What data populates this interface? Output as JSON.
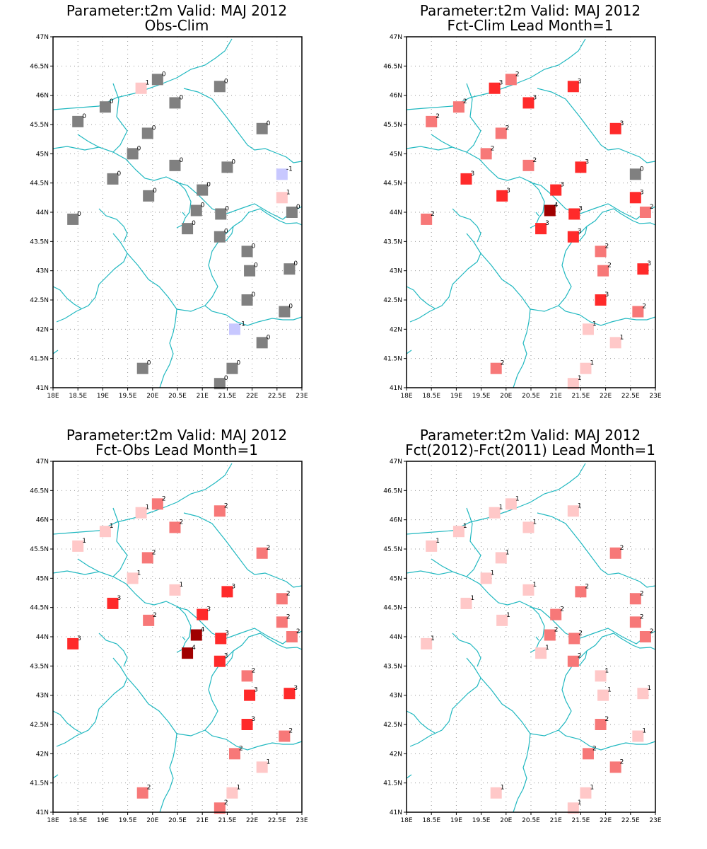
{
  "lon_ticks": [
    "18E",
    "18.5E",
    "19E",
    "19.5E",
    "20E",
    "20.5E",
    "21E",
    "21.5E",
    "22E",
    "22.5E",
    "23E"
  ],
  "lat_ticks": [
    "41N",
    "41.5N",
    "42N",
    "42.5N",
    "43N",
    "43.5N",
    "44N",
    "44.5N",
    "45N",
    "45.5N",
    "46N",
    "46.5N",
    "47N"
  ],
  "stations": [
    {
      "lon": 20.1,
      "lat": 46.27
    },
    {
      "lon": 19.77,
      "lat": 46.12
    },
    {
      "lon": 21.35,
      "lat": 46.15
    },
    {
      "lon": 19.05,
      "lat": 45.8
    },
    {
      "lon": 20.45,
      "lat": 45.87
    },
    {
      "lon": 18.5,
      "lat": 45.55
    },
    {
      "lon": 19.9,
      "lat": 45.35
    },
    {
      "lon": 22.2,
      "lat": 45.43
    },
    {
      "lon": 19.6,
      "lat": 45.0
    },
    {
      "lon": 20.45,
      "lat": 44.8
    },
    {
      "lon": 21.5,
      "lat": 44.77
    },
    {
      "lon": 22.6,
      "lat": 44.65
    },
    {
      "lon": 19.2,
      "lat": 44.57
    },
    {
      "lon": 21.0,
      "lat": 44.38
    },
    {
      "lon": 19.92,
      "lat": 44.28
    },
    {
      "lon": 22.6,
      "lat": 44.25
    },
    {
      "lon": 20.88,
      "lat": 44.03
    },
    {
      "lon": 21.37,
      "lat": 43.97
    },
    {
      "lon": 22.8,
      "lat": 44.0
    },
    {
      "lon": 18.4,
      "lat": 43.88
    },
    {
      "lon": 20.7,
      "lat": 43.72
    },
    {
      "lon": 21.35,
      "lat": 43.58
    },
    {
      "lon": 21.9,
      "lat": 43.33
    },
    {
      "lon": 21.95,
      "lat": 43.0
    },
    {
      "lon": 22.75,
      "lat": 43.03
    },
    {
      "lon": 21.9,
      "lat": 42.5
    },
    {
      "lon": 22.65,
      "lat": 42.3
    },
    {
      "lon": 21.65,
      "lat": 42.0
    },
    {
      "lon": 22.2,
      "lat": 41.77
    },
    {
      "lon": 19.8,
      "lat": 41.33
    },
    {
      "lon": 21.6,
      "lat": 41.33
    },
    {
      "lon": 21.35,
      "lat": 41.07
    }
  ],
  "panels": [
    {
      "title_line1": "Parameter:t2m Valid: MAJ 2012",
      "title_line2": "Obs-Clim",
      "values": [
        0,
        1,
        0,
        0,
        0,
        0,
        0,
        0,
        0,
        0,
        0,
        -1,
        0,
        0,
        0,
        1,
        0,
        0,
        0,
        0,
        0,
        0,
        0,
        0,
        0,
        0,
        0,
        -1,
        0,
        0,
        0,
        0
      ],
      "show": [
        true,
        true,
        true,
        true,
        true,
        true,
        true,
        true,
        true,
        true,
        true,
        true,
        true,
        true,
        true,
        true,
        true,
        true,
        true,
        true,
        true,
        true,
        true,
        true,
        true,
        true,
        true,
        true,
        true,
        true,
        true,
        true
      ]
    },
    {
      "title_line1": "Parameter:t2m Valid: MAJ 2012",
      "title_line2": "Fct-Clim Lead Month=1",
      "values": [
        2,
        3,
        3,
        2,
        3,
        2,
        2,
        3,
        2,
        2,
        3,
        0,
        3,
        3,
        3,
        3,
        4,
        3,
        2,
        2,
        3,
        3,
        2,
        2,
        3,
        3,
        2,
        1,
        1,
        2,
        1,
        1
      ],
      "show": [
        true,
        true,
        true,
        true,
        true,
        true,
        true,
        true,
        true,
        true,
        true,
        true,
        true,
        true,
        true,
        true,
        true,
        true,
        true,
        true,
        true,
        true,
        true,
        true,
        true,
        true,
        true,
        true,
        true,
        true,
        true,
        true
      ]
    },
    {
      "title_line1": "Parameter:t2m Valid: MAJ 2012",
      "title_line2": "Fct-Obs Lead Month=1",
      "values": [
        2,
        1,
        2,
        1,
        2,
        1,
        2,
        2,
        1,
        1,
        3,
        2,
        3,
        3,
        2,
        2,
        4,
        3,
        2,
        3,
        4,
        3,
        2,
        3,
        3,
        3,
        2,
        2,
        1,
        2,
        1,
        2
      ],
      "show": [
        true,
        true,
        true,
        true,
        true,
        true,
        true,
        true,
        true,
        true,
        true,
        true,
        true,
        true,
        true,
        true,
        true,
        true,
        true,
        true,
        true,
        true,
        true,
        true,
        true,
        true,
        true,
        true,
        true,
        true,
        true,
        true
      ]
    },
    {
      "title_line1": "Parameter:t2m Valid: MAJ 2012",
      "title_line2": "Fct(2012)-Fct(2011) Lead Month=1",
      "values": [
        1,
        1,
        1,
        1,
        1,
        1,
        1,
        2,
        1,
        1,
        2,
        2,
        1,
        2,
        1,
        2,
        2,
        2,
        2,
        1,
        1,
        2,
        1,
        1,
        1,
        2,
        1,
        2,
        2,
        1,
        1,
        1
      ],
      "show": [
        true,
        true,
        true,
        true,
        true,
        true,
        true,
        true,
        true,
        true,
        true,
        true,
        true,
        true,
        true,
        true,
        true,
        true,
        true,
        true,
        true,
        true,
        true,
        true,
        true,
        true,
        true,
        true,
        true,
        true,
        true,
        true
      ]
    }
  ],
  "colors": {
    "-1": "#c8c8ff",
    "0": "#808080",
    "1": "#ffc8c8",
    "2": "#f77878",
    "3": "#ff2a2a",
    "4": "#a00000",
    "border": "#20b8c0",
    "grid": "#9a9a9a"
  }
}
